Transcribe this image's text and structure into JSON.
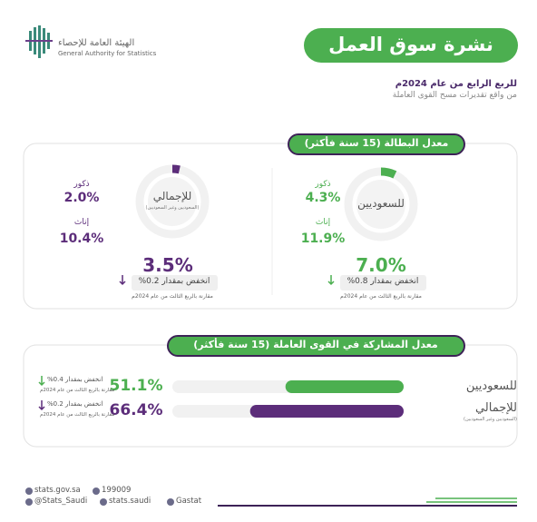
{
  "header": {
    "title": "نشرة سوق العمل",
    "period": "للربع الرابع من عام 2024م",
    "source": "من واقع تقديرات مسح القوى العاملة",
    "org_ar": "الهيئة العامة للإحصاء",
    "org_en": "General Authority for Statistics"
  },
  "unemployment": {
    "title": "معدل البطالة (15 سنة فأكثر)",
    "groups": [
      {
        "name": "للسعوديين",
        "rate": {
          "value": 7.0,
          "label": "7.0%"
        },
        "male_label": "ذكور",
        "male": "4.3%",
        "female_label": "إناث",
        "female": "11.9%",
        "change": "انخفض بمقدار 0.8%",
        "note": "مقارنة بالربع الثالث من عام 2024م"
      },
      {
        "name": "للإجمالي",
        "sub": "(السعوديين وغير السعوديين)",
        "rate": {
          "value": 3.5,
          "label": "3.5%"
        },
        "male_label": "ذكور",
        "male": "2.0%",
        "female_label": "إناث",
        "female": "10.4%",
        "change": "انخفض بمقدار 0.2%",
        "note": "مقارنة بالربع الثالث من عام 2024م"
      }
    ]
  },
  "participation": {
    "title": "معدل المشاركة في القوى العاملة (15 سنة فأكثر)",
    "rows": [
      {
        "name": "للسعوديين",
        "rate": {
          "value": 51.1,
          "label": "51.1%"
        },
        "change": "انخفض بمقدار 0.4%",
        "note": "مقارنة بالربع الثالث من عام 2024م"
      },
      {
        "name": "للإجمالي",
        "sub": "(السعوديين وغير السعوديين)",
        "rate": {
          "value": 66.4,
          "label": "66.4%"
        },
        "change": "انخفض بمقدار 0.2%",
        "note": "مقارنة بالربع الثالث من عام 2024م"
      }
    ]
  },
  "footer": {
    "website": "stats.gov.sa",
    "phone": "199009",
    "twitter": "@Stats_Saudi",
    "social": "stats.saudi",
    "linkedin": "Gastat"
  }
}
